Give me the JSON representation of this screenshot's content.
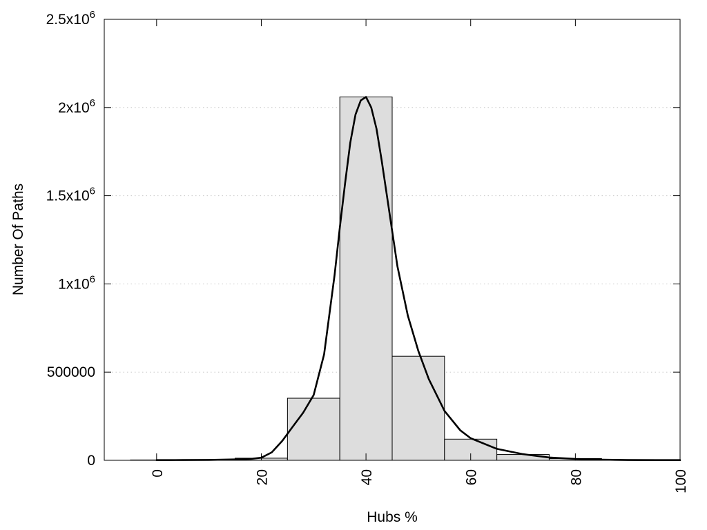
{
  "chart_data": {
    "type": "bar",
    "title": "",
    "xlabel": "Hubs %",
    "ylabel": "Number Of Paths",
    "xlim": [
      -10,
      100
    ],
    "ylim": [
      0,
      2500000
    ],
    "grid": "horizontal dotted",
    "legend": "none",
    "colors": {
      "bar_fill": "#dddddd",
      "bar_stroke": "#000000",
      "curve": "#000000",
      "grid": "#c8c8c8",
      "axis": "#000000"
    },
    "x_ticks": [
      {
        "value": 0,
        "label": "0"
      },
      {
        "value": 20,
        "label": "20"
      },
      {
        "value": 40,
        "label": "40"
      },
      {
        "value": 60,
        "label": "60"
      },
      {
        "value": 80,
        "label": "80"
      },
      {
        "value": 100,
        "label": "100"
      }
    ],
    "y_ticks": [
      {
        "value": 0,
        "mantissa": "0",
        "exponent": ""
      },
      {
        "value": 500000,
        "mantissa": "500000",
        "exponent": ""
      },
      {
        "value": 1000000,
        "mantissa": "1x10",
        "exponent": "6"
      },
      {
        "value": 1500000,
        "mantissa": "1.5x10",
        "exponent": "6"
      },
      {
        "value": 2000000,
        "mantissa": "2x10",
        "exponent": "6"
      },
      {
        "value": 2500000,
        "mantissa": "2.5x10",
        "exponent": "6"
      }
    ],
    "bars": [
      {
        "x": 0,
        "value": 2000
      },
      {
        "x": 10,
        "value": 3000
      },
      {
        "x": 20,
        "value": 12000
      },
      {
        "x": 30,
        "value": 352000
      },
      {
        "x": 40,
        "value": 2060000
      },
      {
        "x": 50,
        "value": 590000
      },
      {
        "x": 60,
        "value": 120000
      },
      {
        "x": 70,
        "value": 33000
      },
      {
        "x": 80,
        "value": 10000
      },
      {
        "x": 90,
        "value": 4000
      },
      {
        "x": 100,
        "value": 2000
      }
    ],
    "bar_width": 10,
    "curve": {
      "x": [
        0,
        5,
        10,
        15,
        18,
        20,
        22,
        24,
        26,
        28,
        30,
        32,
        34,
        35,
        36,
        37,
        38,
        39,
        40,
        41,
        42,
        43,
        44,
        45,
        46,
        48,
        50,
        52,
        55,
        58,
        60,
        65,
        70,
        75,
        80,
        85,
        90,
        95,
        100
      ],
      "y": [
        1000,
        1500,
        2500,
        5000,
        8000,
        15000,
        45000,
        110000,
        190000,
        270000,
        370000,
        600000,
        1050000,
        1320000,
        1570000,
        1800000,
        1960000,
        2040000,
        2060000,
        2000000,
        1880000,
        1700000,
        1500000,
        1300000,
        1100000,
        820000,
        620000,
        460000,
        280000,
        170000,
        125000,
        65000,
        35000,
        16000,
        8000,
        4000,
        1500,
        1000,
        1000
      ]
    }
  }
}
